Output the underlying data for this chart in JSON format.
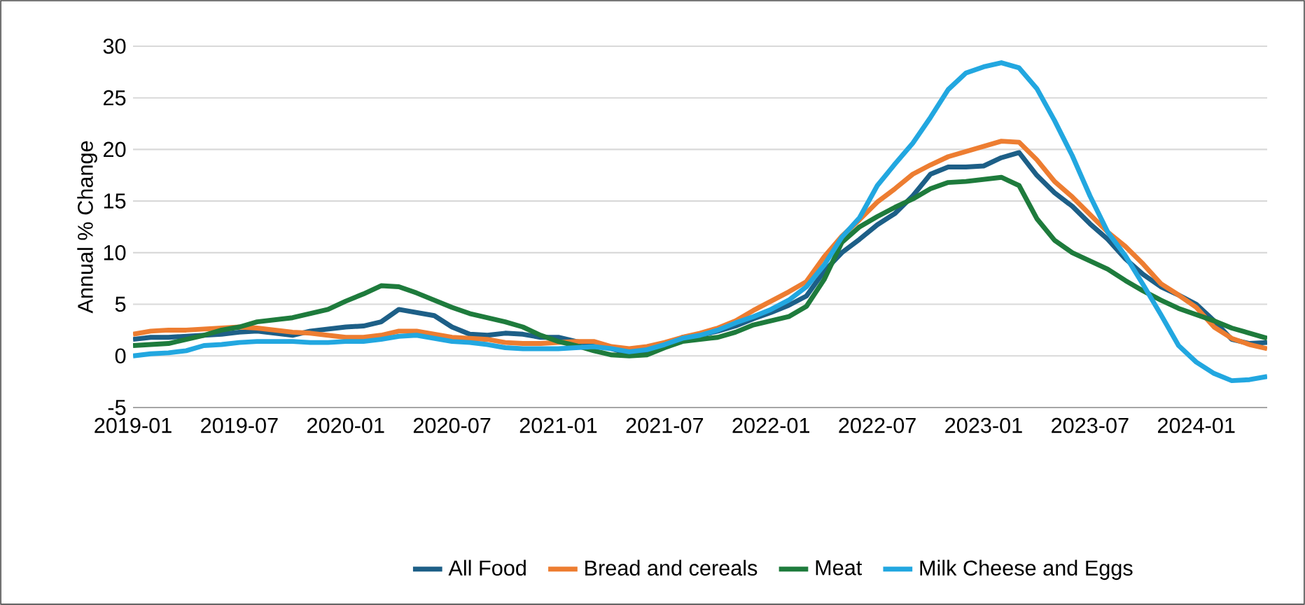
{
  "chart_data": {
    "type": "line",
    "ylabel": "Annual % Change",
    "x": [
      "2019-01",
      "2019-02",
      "2019-03",
      "2019-04",
      "2019-05",
      "2019-06",
      "2019-07",
      "2019-08",
      "2019-09",
      "2019-10",
      "2019-11",
      "2019-12",
      "2020-01",
      "2020-02",
      "2020-03",
      "2020-04",
      "2020-05",
      "2020-06",
      "2020-07",
      "2020-08",
      "2020-09",
      "2020-10",
      "2020-11",
      "2020-12",
      "2021-01",
      "2021-02",
      "2021-03",
      "2021-04",
      "2021-05",
      "2021-06",
      "2021-07",
      "2021-08",
      "2021-09",
      "2021-10",
      "2021-11",
      "2021-12",
      "2022-01",
      "2022-02",
      "2022-03",
      "2022-04",
      "2022-05",
      "2022-06",
      "2022-07",
      "2022-08",
      "2022-09",
      "2022-10",
      "2022-11",
      "2022-12",
      "2023-01",
      "2023-02",
      "2023-03",
      "2023-04",
      "2023-05",
      "2023-06",
      "2023-07",
      "2023-08",
      "2023-09",
      "2023-10",
      "2023-11",
      "2023-12",
      "2024-01",
      "2024-02",
      "2024-03",
      "2024-04",
      "2024-05"
    ],
    "series": [
      {
        "name": "All Food",
        "color": "#1d5f87",
        "values": [
          1.6,
          1.8,
          1.8,
          1.9,
          2.0,
          2.1,
          2.3,
          2.4,
          2.2,
          2.0,
          2.4,
          2.6,
          2.8,
          2.9,
          3.3,
          4.5,
          4.2,
          3.9,
          2.8,
          2.1,
          2.0,
          2.2,
          2.1,
          1.8,
          1.8,
          1.4,
          1.1,
          0.7,
          0.2,
          0.2,
          0.9,
          1.8,
          2.0,
          2.4,
          2.9,
          3.6,
          4.2,
          4.9,
          5.8,
          8.2,
          10.0,
          11.3,
          12.7,
          13.8,
          15.5,
          17.6,
          18.3,
          18.3,
          18.4,
          19.2,
          19.7,
          17.5,
          15.8,
          14.5,
          12.8,
          11.3,
          9.4,
          7.9,
          6.7,
          5.9,
          5.0,
          3.4,
          1.6,
          1.2,
          1.3
        ]
      },
      {
        "name": "Bread and cereals",
        "color": "#ed7d31",
        "values": [
          2.1,
          2.4,
          2.5,
          2.5,
          2.6,
          2.7,
          2.8,
          2.7,
          2.5,
          2.3,
          2.2,
          2.0,
          1.8,
          1.8,
          2.0,
          2.4,
          2.4,
          2.1,
          1.8,
          1.7,
          1.6,
          1.3,
          1.2,
          1.2,
          1.3,
          1.4,
          1.4,
          0.9,
          0.7,
          0.9,
          1.3,
          1.8,
          2.2,
          2.7,
          3.4,
          4.4,
          5.3,
          6.2,
          7.2,
          9.6,
          11.6,
          13.2,
          14.9,
          16.2,
          17.6,
          18.5,
          19.3,
          19.8,
          20.3,
          20.8,
          20.7,
          19.0,
          16.9,
          15.4,
          13.7,
          12.0,
          10.6,
          8.9,
          7.0,
          5.9,
          4.7,
          2.8,
          1.7,
          1.1,
          0.7
        ]
      },
      {
        "name": "Meat",
        "color": "#1e7b3c",
        "values": [
          1.0,
          1.1,
          1.2,
          1.6,
          2.0,
          2.5,
          2.8,
          3.3,
          3.5,
          3.7,
          4.1,
          4.5,
          5.3,
          6.0,
          6.8,
          6.7,
          6.1,
          5.4,
          4.7,
          4.1,
          3.7,
          3.3,
          2.8,
          2.0,
          1.4,
          1.0,
          0.5,
          0.1,
          0.0,
          0.1,
          0.8,
          1.4,
          1.6,
          1.8,
          2.3,
          3.0,
          3.4,
          3.8,
          4.8,
          7.4,
          11.0,
          12.5,
          13.5,
          14.4,
          15.2,
          16.2,
          16.8,
          16.9,
          17.1,
          17.3,
          16.5,
          13.3,
          11.2,
          10.0,
          9.2,
          8.4,
          7.3,
          6.3,
          5.4,
          4.6,
          4.0,
          3.4,
          2.7,
          2.2,
          1.7
        ]
      },
      {
        "name": "Milk Cheese and Eggs",
        "color": "#22a7e0",
        "values": [
          0.0,
          0.2,
          0.3,
          0.5,
          1.0,
          1.1,
          1.3,
          1.4,
          1.4,
          1.4,
          1.3,
          1.3,
          1.4,
          1.4,
          1.6,
          1.9,
          2.0,
          1.7,
          1.4,
          1.3,
          1.1,
          0.8,
          0.7,
          0.7,
          0.7,
          0.8,
          0.9,
          0.7,
          0.4,
          0.6,
          1.1,
          1.7,
          2.0,
          2.5,
          3.2,
          3.8,
          4.5,
          5.4,
          6.7,
          8.8,
          11.5,
          13.4,
          16.5,
          18.6,
          20.6,
          23.1,
          25.8,
          27.4,
          28.0,
          28.4,
          27.9,
          25.9,
          22.8,
          19.4,
          15.5,
          12.0,
          9.7,
          6.9,
          4.0,
          1.0,
          -0.6,
          -1.7,
          -2.4,
          -2.3,
          -2.0
        ]
      }
    ],
    "xlim": [
      "2019-01",
      "2024-05"
    ],
    "xticks": [
      "2019-01",
      "2019-07",
      "2020-01",
      "2020-07",
      "2021-01",
      "2021-07",
      "2022-01",
      "2022-07",
      "2023-01",
      "2023-07",
      "2024-01"
    ],
    "ylim": [
      -5,
      30
    ],
    "yticks": [
      -5,
      0,
      5,
      10,
      15,
      20,
      25,
      30
    ],
    "grid": "y",
    "legend": "bottom",
    "marker": "none",
    "line_style": "solid"
  }
}
